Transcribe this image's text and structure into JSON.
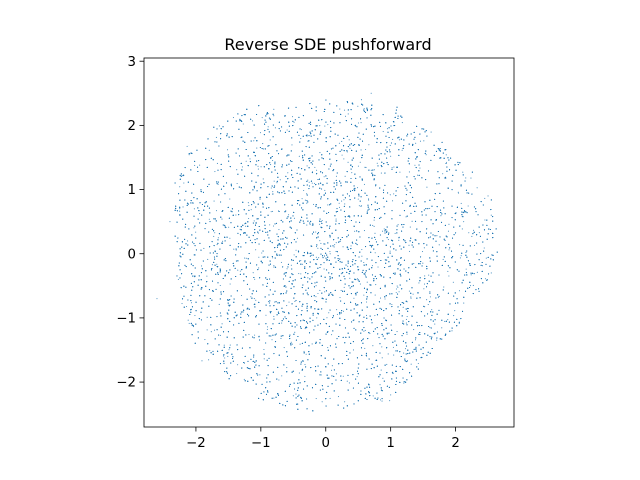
{
  "chart_data": {
    "type": "scatter",
    "title": "Reverse SDE pushforward",
    "xlabel": "",
    "ylabel": "",
    "xlim": [
      -2.8,
      2.9
    ],
    "ylim": [
      -2.7,
      3.05
    ],
    "xticks": [
      -2,
      -1,
      0,
      1,
      2
    ],
    "yticks": [
      -2,
      -1,
      0,
      1,
      2,
      3
    ],
    "xtick_labels": [
      "−2",
      "−1",
      "0",
      "1",
      "2"
    ],
    "ytick_labels": [
      "−2",
      "−1",
      "0",
      "1",
      "2",
      "3"
    ],
    "grid": false,
    "legend": "none",
    "marker_color": "#1f77b4",
    "series": [
      {
        "sample_count": 10000,
        "approx_radius": 2.45,
        "distribution": "roughly uniform disk of samples centered near the origin with slight extension toward the upper right",
        "center": [
          0.0,
          0.0
        ],
        "extent": {
          "x": [
            -2.6,
            2.65
          ],
          "y": [
            -2.45,
            2.55
          ]
        },
        "notable_points": [
          [
            0.7,
            2.5
          ],
          [
            0.55,
            2.4
          ],
          [
            -0.8,
            2.25
          ],
          [
            -0.8,
            -2.25
          ],
          [
            1.0,
            -2.2
          ],
          [
            2.5,
            0.9
          ],
          [
            2.55,
            0.6
          ],
          [
            2.55,
            -0.3
          ],
          [
            -2.6,
            -0.7
          ],
          [
            -2.4,
            0.5
          ]
        ]
      }
    ]
  }
}
